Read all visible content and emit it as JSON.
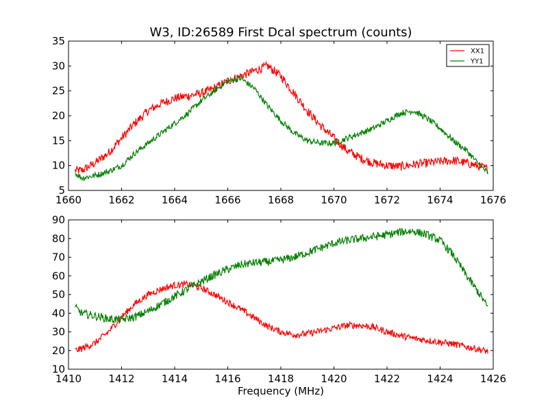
{
  "figure_title": "W3, ID:26589 First Dcal spectrum (counts)",
  "colors": {
    "XX1": "#ff0000",
    "YY1": "#008000"
  },
  "chart_data": [
    {
      "type": "line",
      "title": "W3, ID:26589 First Dcal spectrum (counts)",
      "xlabel": "",
      "ylabel": "",
      "xlim": [
        1660,
        1676
      ],
      "ylim": [
        5,
        35
      ],
      "xticks": [
        1660,
        1662,
        1664,
        1666,
        1668,
        1670,
        1672,
        1674,
        1676
      ],
      "yticks": [
        5,
        10,
        15,
        20,
        25,
        30,
        35
      ],
      "legend": {
        "placement": "top-right",
        "entries": [
          "XX1",
          "YY1"
        ]
      },
      "grid": false,
      "series": [
        {
          "name": "XX1",
          "color": "#ff0000",
          "x": [
            1660.25,
            1660.5,
            1661.0,
            1661.5,
            1662.0,
            1662.5,
            1663.0,
            1663.5,
            1664.0,
            1664.5,
            1665.0,
            1665.5,
            1666.0,
            1666.5,
            1667.0,
            1667.5,
            1668.0,
            1668.5,
            1669.0,
            1669.5,
            1670.0,
            1670.5,
            1671.0,
            1671.5,
            1672.0,
            1672.5,
            1673.0,
            1673.5,
            1674.0,
            1674.5,
            1675.0,
            1675.5,
            1675.8
          ],
          "values": [
            9.0,
            9.0,
            10.5,
            12.5,
            15.5,
            18.5,
            21.0,
            22.5,
            23.5,
            24.0,
            24.5,
            25.5,
            27.0,
            28.0,
            29.0,
            30.0,
            28.0,
            24.5,
            21.0,
            18.0,
            15.5,
            13.0,
            11.5,
            10.5,
            10.0,
            9.8,
            10.2,
            10.5,
            10.8,
            11.0,
            10.5,
            9.8,
            9.3
          ],
          "noise": 0.9
        },
        {
          "name": "YY1",
          "color": "#008000",
          "x": [
            1660.25,
            1660.5,
            1661.0,
            1661.5,
            1662.0,
            1662.5,
            1663.0,
            1663.5,
            1664.0,
            1664.5,
            1665.0,
            1665.5,
            1666.0,
            1666.5,
            1667.0,
            1667.5,
            1668.0,
            1668.5,
            1669.0,
            1669.5,
            1670.0,
            1670.5,
            1671.0,
            1671.5,
            1672.0,
            1672.5,
            1673.0,
            1673.5,
            1674.0,
            1674.5,
            1675.0,
            1675.5,
            1675.8
          ],
          "values": [
            8.5,
            7.5,
            8.0,
            8.8,
            10.0,
            12.5,
            14.5,
            16.5,
            18.5,
            20.5,
            23.0,
            25.0,
            27.0,
            27.5,
            25.5,
            22.0,
            19.0,
            16.5,
            15.0,
            14.5,
            14.5,
            15.5,
            16.5,
            17.5,
            19.0,
            20.5,
            21.0,
            19.5,
            17.5,
            15.0,
            13.0,
            10.0,
            8.5
          ],
          "noise": 0.6
        }
      ]
    },
    {
      "type": "line",
      "title": "",
      "xlabel": "Frequency (MHz)",
      "ylabel": "",
      "xlim": [
        1410,
        1426
      ],
      "ylim": [
        10,
        90
      ],
      "xticks": [
        1410,
        1412,
        1414,
        1416,
        1418,
        1420,
        1422,
        1424,
        1426
      ],
      "yticks": [
        10,
        20,
        30,
        40,
        50,
        60,
        70,
        80,
        90
      ],
      "grid": false,
      "series": [
        {
          "name": "XX1",
          "color": "#ff0000",
          "x": [
            1410.25,
            1410.5,
            1411.0,
            1411.5,
            1412.0,
            1412.5,
            1413.0,
            1413.5,
            1414.0,
            1414.5,
            1415.0,
            1415.5,
            1416.0,
            1416.5,
            1417.0,
            1417.5,
            1418.0,
            1418.5,
            1419.0,
            1419.5,
            1420.0,
            1420.5,
            1421.0,
            1421.5,
            1422.0,
            1422.5,
            1423.0,
            1423.5,
            1424.0,
            1424.5,
            1425.0,
            1425.5,
            1425.8
          ],
          "values": [
            20.0,
            21.0,
            24.0,
            30.0,
            38.0,
            45.0,
            50.0,
            53.0,
            55.0,
            55.5,
            53.5,
            50.0,
            46.0,
            42.0,
            37.5,
            33.0,
            30.0,
            28.5,
            29.0,
            30.5,
            32.0,
            33.5,
            33.5,
            32.5,
            30.0,
            28.0,
            26.5,
            25.5,
            24.5,
            23.5,
            22.0,
            20.5,
            19.5
          ],
          "noise": 1.8
        },
        {
          "name": "YY1",
          "color": "#008000",
          "x": [
            1410.25,
            1410.5,
            1411.0,
            1411.5,
            1412.0,
            1412.5,
            1413.0,
            1413.5,
            1414.0,
            1414.5,
            1415.0,
            1415.5,
            1416.0,
            1416.5,
            1417.0,
            1417.5,
            1418.0,
            1418.5,
            1419.0,
            1419.5,
            1420.0,
            1420.5,
            1421.0,
            1421.5,
            1422.0,
            1422.5,
            1423.0,
            1423.5,
            1424.0,
            1424.5,
            1425.0,
            1425.5,
            1425.8
          ],
          "values": [
            43.0,
            40.0,
            38.5,
            37.0,
            36.5,
            38.0,
            41.0,
            45.0,
            49.0,
            53.0,
            57.0,
            60.5,
            63.5,
            66.0,
            67.0,
            67.5,
            68.5,
            70.0,
            72.5,
            75.0,
            77.5,
            79.0,
            80.0,
            81.0,
            82.0,
            83.5,
            84.0,
            82.0,
            79.0,
            71.0,
            60.0,
            50.0,
            43.0
          ],
          "noise": 2.2
        }
      ]
    }
  ]
}
